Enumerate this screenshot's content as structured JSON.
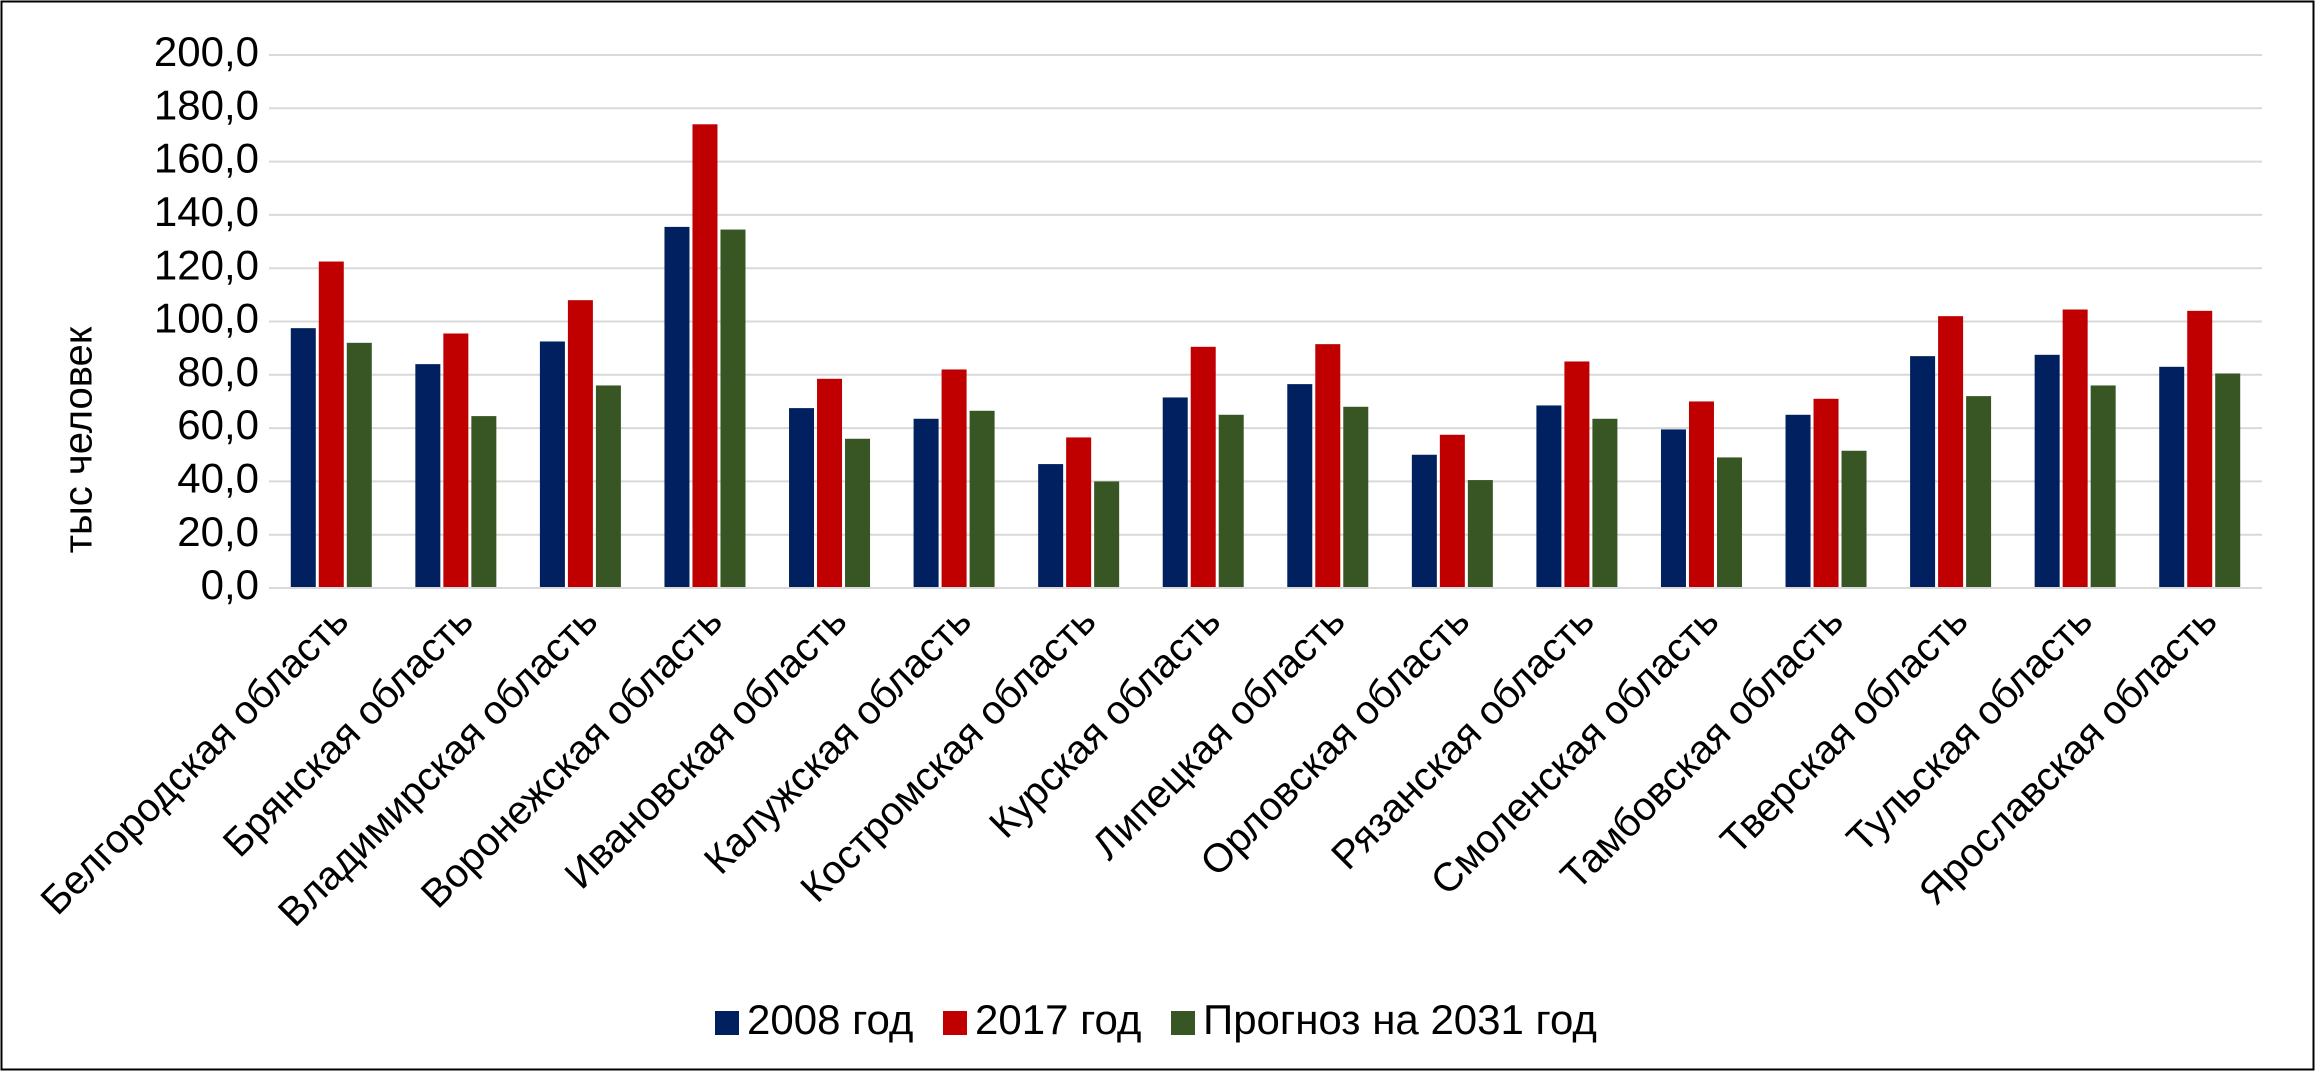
{
  "chart_data": {
    "type": "bar",
    "y_label": "тыс человек",
    "categories": [
      "Белгородская область",
      "Брянская область",
      "Владимирская область",
      "Воронежская область",
      "Ивановская область",
      "Калужская область",
      "Костромская область",
      "Курская область",
      "Липецкая область",
      "Орловская область",
      "Рязанская область",
      "Смоленская область",
      "Тамбовская область",
      "Тверская область",
      "Тульская область",
      "Ярославская область"
    ],
    "series": [
      {
        "name": "2008 год",
        "color": "#002060",
        "values": [
          97.5,
          84,
          92.5,
          135.5,
          67.5,
          63.5,
          46.5,
          71.5,
          76.5,
          50,
          68.5,
          59.5,
          65,
          87,
          87.5,
          83
        ]
      },
      {
        "name": "2017 год",
        "color": "#c00000",
        "values": [
          122.5,
          95.5,
          108,
          174,
          78.5,
          82,
          56.5,
          90.5,
          91.5,
          57.5,
          85,
          70,
          71,
          102,
          104.5,
          104
        ]
      },
      {
        "name": "Прогноз на 2031 год",
        "color": "#375623",
        "values": [
          92,
          64.5,
          76,
          134.5,
          56,
          66.5,
          40,
          65,
          68,
          40.5,
          63.5,
          49,
          51.5,
          72,
          76,
          80.5
        ]
      }
    ],
    "ylim": [
      0,
      200
    ],
    "yticks": [
      {
        "value": 0,
        "label": "0,0"
      },
      {
        "value": 20,
        "label": "20,0"
      },
      {
        "value": 40,
        "label": "40,0"
      },
      {
        "value": 60,
        "label": "60,0"
      },
      {
        "value": 80,
        "label": "80,0"
      },
      {
        "value": 100,
        "label": "100,0"
      },
      {
        "value": 120,
        "label": "120,0"
      },
      {
        "value": 140,
        "label": "140,0"
      },
      {
        "value": 160,
        "label": "160,0"
      },
      {
        "value": 180,
        "label": "180,0"
      },
      {
        "value": 200,
        "label": "200,0"
      }
    ],
    "grid": true,
    "legend": "bottom"
  }
}
